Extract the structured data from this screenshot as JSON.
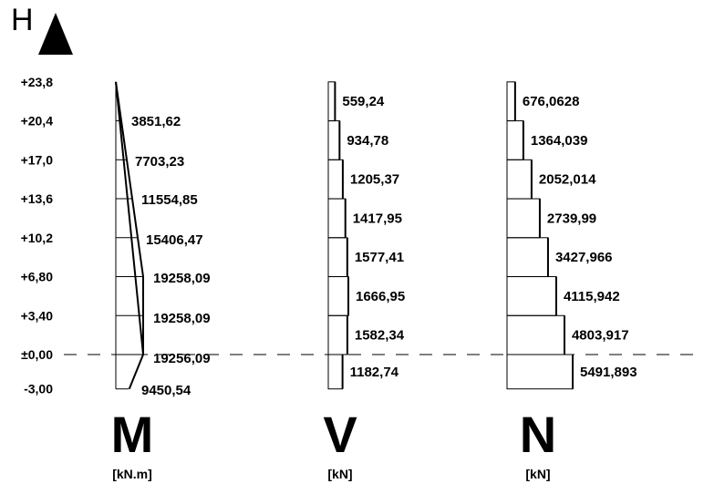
{
  "axis": {
    "label": "H"
  },
  "levels": [
    {
      "label": "+23,8",
      "value": 23.8
    },
    {
      "label": "+20,4",
      "value": 20.4
    },
    {
      "label": "+17,0",
      "value": 17.0
    },
    {
      "label": "+13,6",
      "value": 13.6
    },
    {
      "label": "+10,2",
      "value": 10.2
    },
    {
      "label": "+6,80",
      "value": 6.8
    },
    {
      "label": "+3,40",
      "value": 3.4
    },
    {
      "label": "±0,00",
      "value": 0.0
    },
    {
      "label": "-3,00",
      "value": -3.0
    }
  ],
  "moment": {
    "symbol": "M",
    "unit": "[kN.m]",
    "values": [
      {
        "label": "3851,62",
        "value": 3851.62
      },
      {
        "label": "7703,23",
        "value": 7703.23
      },
      {
        "label": "11554,85",
        "value": 11554.85
      },
      {
        "label": "15406,47",
        "value": 15406.47
      },
      {
        "label": "19258,09",
        "value": 19258.09
      },
      {
        "label": "19258,09",
        "value": 19258.09
      },
      {
        "label": "19256,09",
        "value": 19256.09
      },
      {
        "label": "9450,54",
        "value": 9450.54
      }
    ]
  },
  "shear": {
    "symbol": "V",
    "unit": "[kN]",
    "values": [
      {
        "label": "559,24",
        "value": 559.24
      },
      {
        "label": "934,78",
        "value": 934.78
      },
      {
        "label": "1205,37",
        "value": 1205.37
      },
      {
        "label": "1417,95",
        "value": 1417.95
      },
      {
        "label": "1577,41",
        "value": 1577.41
      },
      {
        "label": "1666,95",
        "value": 1666.95
      },
      {
        "label": "1582,34",
        "value": 1582.34
      },
      {
        "label": "1182,74",
        "value": 1182.74
      }
    ]
  },
  "normal": {
    "symbol": "N",
    "unit": "[kN]",
    "values": [
      {
        "label": "676,0628",
        "value": 676.0628
      },
      {
        "label": "1364,039",
        "value": 1364.039
      },
      {
        "label": "2052,014",
        "value": 2052.014
      },
      {
        "label": "2739,99",
        "value": 2739.99
      },
      {
        "label": "3427,966",
        "value": 3427.966
      },
      {
        "label": "4115,942",
        "value": 4115.942
      },
      {
        "label": "4803,917",
        "value": 4803.917
      },
      {
        "label": "5491,893",
        "value": 5491.893
      }
    ]
  }
}
